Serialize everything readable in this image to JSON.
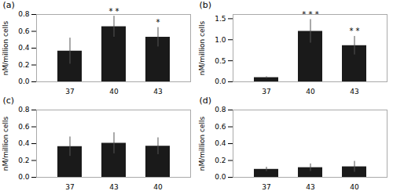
{
  "chart_data": [
    {
      "type": "bar",
      "title": "(a)",
      "ylabel": "nM/million cells",
      "categories": [
        "37",
        "40",
        "43"
      ],
      "values": [
        0.365,
        0.655,
        0.53
      ],
      "errors": [
        0.155,
        0.125,
        0.115
      ],
      "annotations": [
        null,
        "* *",
        "*"
      ],
      "color": "#1a1a1a",
      "ylim": [
        0,
        0.8
      ],
      "yticks": [
        {
          "value": 0,
          "label": "0.0"
        },
        0.2,
        0.4,
        0.6,
        0.8
      ],
      "grid": false
    },
    {
      "type": "bar",
      "title": "(b)",
      "ylabel": "nM/million cells",
      "categories": [
        "37",
        "40",
        "43"
      ],
      "values": [
        0.1,
        1.2,
        0.86
      ],
      "errors": [
        0.02,
        0.28,
        0.22
      ],
      "annotations": [
        null,
        "* * *",
        "* *"
      ],
      "color": "#1a1a1a",
      "ylim": [
        0,
        1.6
      ],
      "yticks": [
        {
          "value": 0,
          "label": "0.0"
        },
        0.5,
        {
          "value": 1.0,
          "label": "1.0"
        },
        1.5
      ],
      "grid": false
    },
    {
      "type": "bar",
      "title": "(c)",
      "ylabel": "nM/million cells",
      "categories": [
        "37",
        "43",
        "40"
      ],
      "values": [
        0.365,
        0.405,
        0.37
      ],
      "errors": [
        0.115,
        0.125,
        0.1
      ],
      "color": "#1a1a1a",
      "ylim": [
        0,
        0.8
      ],
      "yticks": [
        {
          "value": 0,
          "label": "0.0"
        },
        0.2,
        0.4,
        0.6,
        0.8
      ],
      "grid": false
    },
    {
      "type": "bar",
      "title": "(d)",
      "ylabel": "nM/million cells",
      "categories": [
        "37",
        "43",
        "40"
      ],
      "values": [
        0.095,
        0.115,
        0.125
      ],
      "errors": [
        0.025,
        0.045,
        0.065
      ],
      "color": "#1a1a1a",
      "ylim": [
        0,
        0.8
      ],
      "yticks": [
        {
          "value": 0,
          "label": "0.0"
        },
        0.2,
        0.4,
        0.6,
        0.8
      ],
      "grid": false
    }
  ]
}
